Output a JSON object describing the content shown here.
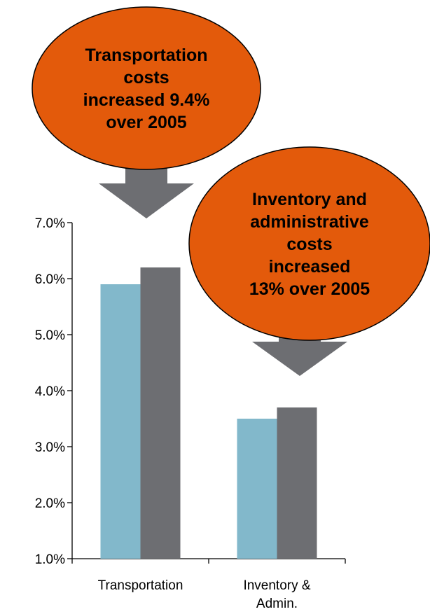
{
  "chart_data": {
    "type": "bar",
    "categories": [
      "Transportation",
      "Inventory & Admin."
    ],
    "category_lines": [
      [
        "Transportation"
      ],
      [
        "Inventory &",
        "Admin."
      ]
    ],
    "series": [
      {
        "values": [
          5.9,
          3.5
        ],
        "color": "#82b8cb"
      },
      {
        "values": [
          6.2,
          3.7
        ],
        "color": "#6d6e72"
      }
    ],
    "ylim": [
      1.0,
      7.0
    ],
    "yticks": [
      "1.0%",
      "2.0%",
      "3.0%",
      "4.0%",
      "5.0%",
      "6.0%",
      "7.0%"
    ],
    "grid": false,
    "legend": "none",
    "title": "",
    "xlabel": "",
    "ylabel": ""
  },
  "callouts": [
    {
      "lines": [
        "Transportation",
        "costs",
        "increased 9.4%",
        "over 2005"
      ],
      "fill": "#e35a0b",
      "arrow_color": "#6d6e72"
    },
    {
      "lines": [
        "Inventory and",
        "administrative",
        "costs",
        "increased",
        "13% over 2005"
      ],
      "fill": "#e35a0b",
      "arrow_color": "#6d6e72"
    }
  ]
}
